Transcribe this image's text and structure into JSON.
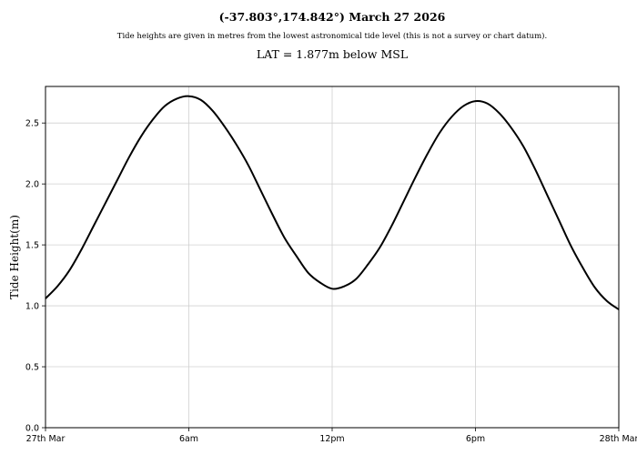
{
  "header": {
    "title": "(-37.803°,174.842°) March 27 2026",
    "subtitle": "Tide heights are given in metres from the lowest astronomical tide level (this is not a survey or chart datum).",
    "lat_note": "LAT = 1.877m below MSL"
  },
  "chart_data": {
    "type": "line",
    "title": "(-37.803°,174.842°) March 27 2026",
    "xlabel": "",
    "ylabel": "Tide Height(m)",
    "xlim": [
      0,
      24
    ],
    "ylim": [
      0,
      2.8
    ],
    "x_ticks": [
      {
        "value": 0,
        "label": "27th Mar"
      },
      {
        "value": 6,
        "label": "6am"
      },
      {
        "value": 12,
        "label": "12pm"
      },
      {
        "value": 18,
        "label": "6pm"
      },
      {
        "value": 24,
        "label": "28th Mar"
      }
    ],
    "y_ticks": [
      0.0,
      0.5,
      1.0,
      1.5,
      2.0,
      2.5
    ],
    "y_tick_labels": [
      "0.0",
      "0.5",
      "1.0",
      "1.5",
      "2.0",
      "2.5"
    ],
    "grid": true,
    "line_color": "#000000",
    "grid_color": "#d0d0d0",
    "series": [
      {
        "x": [
          0,
          0.5,
          1,
          1.5,
          2,
          2.5,
          3,
          3.5,
          4,
          4.5,
          5,
          5.5,
          6,
          6.5,
          7,
          7.5,
          8,
          8.5,
          9,
          9.5,
          10,
          10.5,
          11,
          11.5,
          12,
          12.5,
          13,
          13.5,
          14,
          14.5,
          15,
          15.5,
          16,
          16.5,
          17,
          17.5,
          18,
          18.5,
          19,
          19.5,
          20,
          20.5,
          21,
          21.5,
          22,
          22.5,
          23,
          23.5,
          24
        ],
        "y": [
          1.06,
          1.16,
          1.29,
          1.46,
          1.65,
          1.84,
          2.03,
          2.22,
          2.39,
          2.53,
          2.64,
          2.7,
          2.72,
          2.69,
          2.6,
          2.47,
          2.32,
          2.15,
          1.95,
          1.75,
          1.56,
          1.41,
          1.27,
          1.19,
          1.14,
          1.16,
          1.22,
          1.34,
          1.48,
          1.66,
          1.86,
          2.06,
          2.25,
          2.42,
          2.55,
          2.64,
          2.68,
          2.66,
          2.58,
          2.46,
          2.31,
          2.12,
          1.91,
          1.7,
          1.49,
          1.31,
          1.15,
          1.04,
          0.97
        ]
      }
    ]
  }
}
